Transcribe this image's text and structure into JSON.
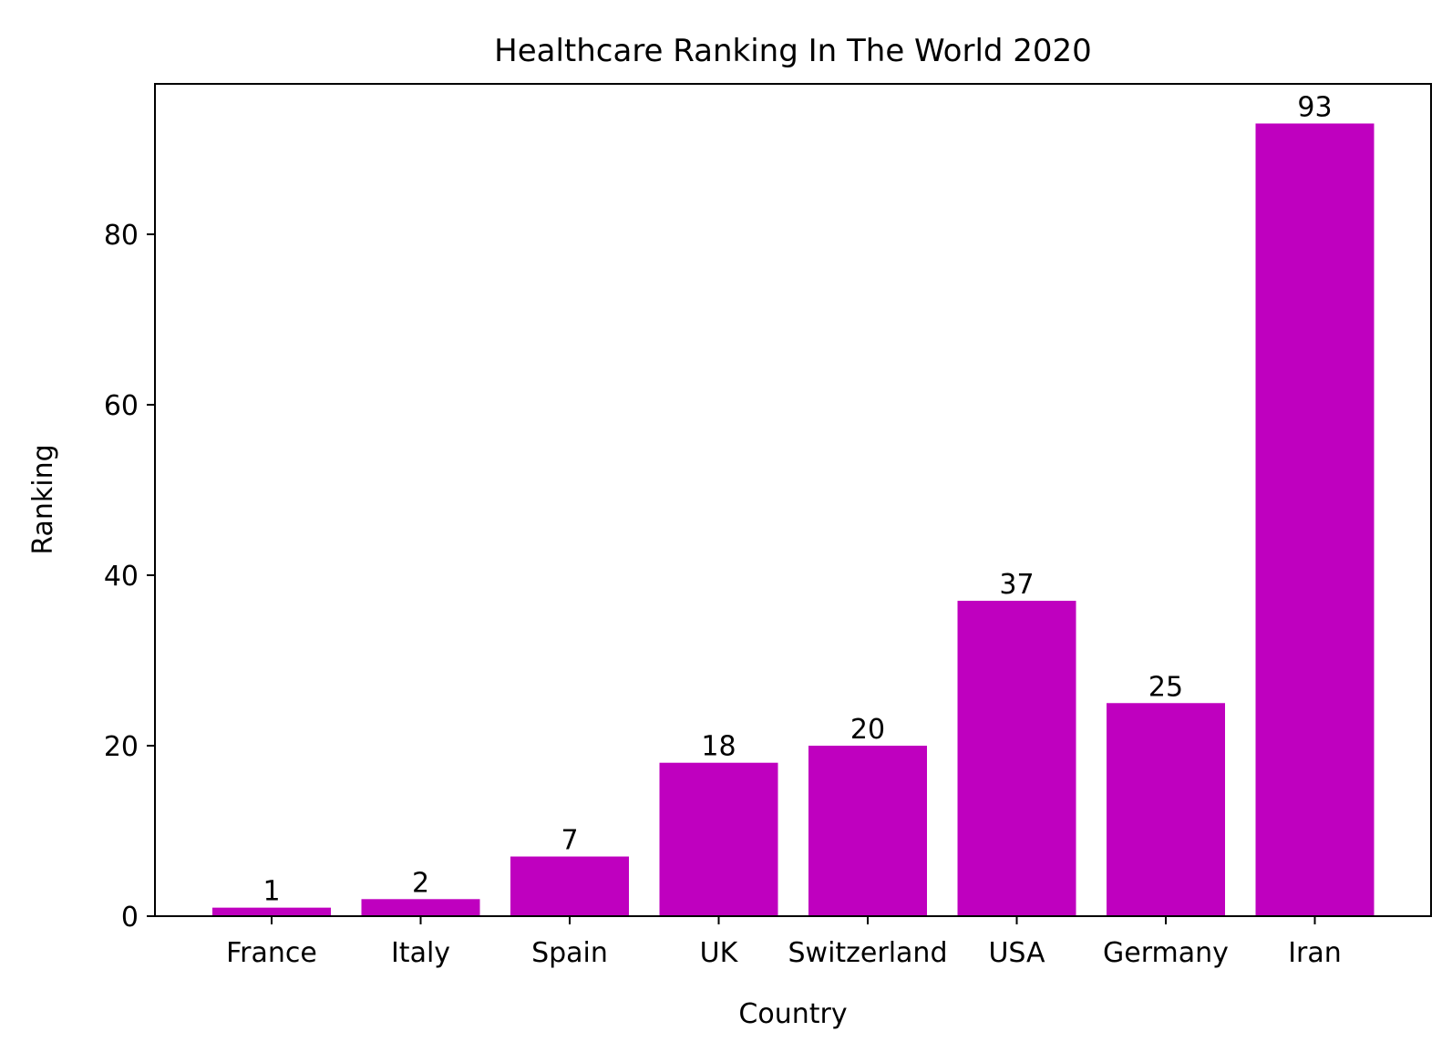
{
  "chart_data": {
    "type": "bar",
    "title": "Healthcare Ranking In The World 2020",
    "xlabel": "Country",
    "ylabel": "Ranking",
    "categories": [
      "France",
      "Italy",
      "Spain",
      "UK",
      "Switzerland",
      "USA",
      "Germany",
      "Iran"
    ],
    "values": [
      1,
      2,
      7,
      18,
      20,
      37,
      25,
      93
    ],
    "data_labels": [
      "1",
      "2",
      "7",
      "18",
      "20",
      "37",
      "25",
      "93"
    ],
    "ylim": [
      0,
      97.65
    ],
    "yticks": [
      0,
      20,
      40,
      60,
      80
    ],
    "ytick_labels": [
      "0",
      "20",
      "40",
      "60",
      "80"
    ],
    "bar_color": "#bf00bf",
    "grid": false,
    "legend": "none"
  }
}
